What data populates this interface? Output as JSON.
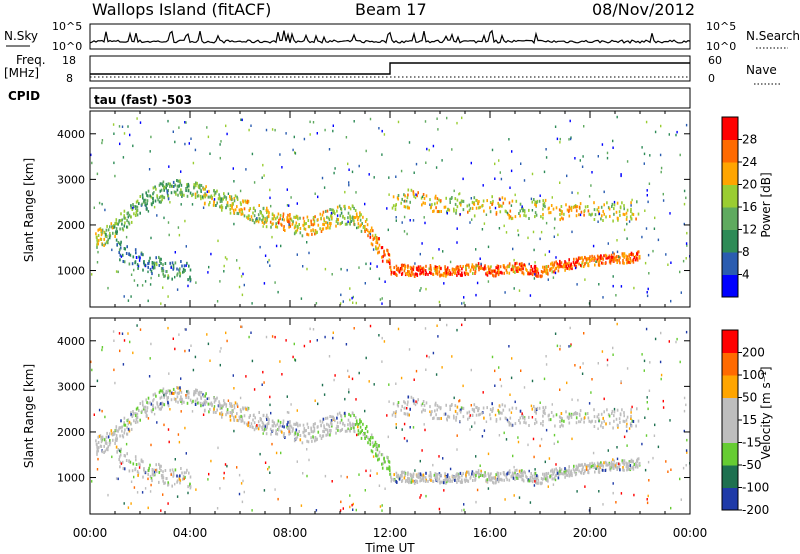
{
  "header": {
    "station": "Wallops Island (fitACF)",
    "beam": "Beam 17",
    "date": "08/Nov/2012"
  },
  "top_panels": {
    "nsky_label": "N.Sky",
    "nsky_ticks": [
      "10^5",
      "10^0"
    ],
    "nsearch_label": "N.Search",
    "nsearch_ticks": [
      "10^5",
      "10^0"
    ],
    "freq_label": "Freq.",
    "freq_unit": "[MHz]",
    "freq_ticks": [
      "18",
      "8"
    ],
    "nave_label": "Nave",
    "nave_ticks": [
      "60",
      "0"
    ],
    "cpid_label": "CPID",
    "cpid_value": "tau (fast) -503"
  },
  "colors": {
    "power": [
      "#0000ff",
      "#2a5cb0",
      "#2e8b57",
      "#5faa5f",
      "#9acd32",
      "#ffa500",
      "#ff6a00",
      "#ff0000"
    ],
    "velocity": [
      "#1f3aa8",
      "#1e7050",
      "#66cc33",
      "#bebebe",
      "#bebebe",
      "#ffa500",
      "#ff6a00",
      "#ff0000"
    ]
  },
  "chart_data": [
    {
      "type": "heatmap",
      "name": "power",
      "ylabel": "Slant Range [km]",
      "yticks": [
        1000,
        2000,
        3000,
        4000
      ],
      "ylim": [
        200,
        4500
      ],
      "colorbar_label": "Power [dB]",
      "colorbar_ticks": [
        "28",
        "24",
        "20",
        "16",
        "12",
        "8",
        "4"
      ],
      "traces": [
        {
          "x": [
            0.2,
            0.6,
            1.0,
            1.5,
            2.0,
            2.5,
            3.0,
            3.5,
            4.0,
            4.5,
            5.0,
            5.5,
            6.0,
            6.5,
            7.0,
            7.5,
            8.0,
            8.5,
            9.0,
            9.5,
            10.0,
            10.5,
            11.0,
            11.5,
            12.0
          ],
          "y": [
            1700,
            1800,
            2000,
            2200,
            2500,
            2650,
            2800,
            2850,
            2800,
            2700,
            2600,
            2500,
            2450,
            2300,
            2200,
            2100,
            2050,
            2000,
            2050,
            2150,
            2250,
            2250,
            2000,
            1600,
            1150
          ],
          "v": [
            18,
            16,
            14,
            14,
            12,
            14,
            12,
            14,
            16,
            18,
            16,
            18,
            20,
            18,
            20,
            24,
            20,
            22,
            20,
            18,
            16,
            20,
            24,
            26,
            28
          ]
        },
        {
          "x": [
            12.0,
            12.5,
            13.0,
            13.5,
            14.0,
            14.5,
            15.0,
            15.5,
            16.0,
            16.5,
            17.0,
            17.5,
            18.0,
            18.5,
            19.0,
            19.5,
            20.0,
            20.5,
            21.0,
            21.5,
            22.0
          ],
          "y": [
            1000,
            1050,
            1000,
            1050,
            1020,
            1000,
            1050,
            1080,
            1000,
            1050,
            1100,
            1050,
            1000,
            1100,
            1150,
            1200,
            1250,
            1250,
            1300,
            1300,
            1350
          ],
          "v": [
            28,
            26,
            28,
            24,
            26,
            28,
            24,
            26,
            28,
            24,
            26,
            28,
            24,
            26,
            28,
            24,
            26,
            28,
            24,
            26,
            20
          ]
        },
        {
          "x": [
            12.0,
            13.0,
            14.0,
            15.0,
            16.0,
            17.0,
            18.0,
            19.0,
            20.0,
            21.0,
            22.0
          ],
          "y": [
            2500,
            2650,
            2450,
            2400,
            2500,
            2350,
            2400,
            2300,
            2350,
            2300,
            2350
          ],
          "v": [
            20,
            22,
            18,
            20,
            22,
            18,
            20,
            22,
            18,
            20,
            16
          ]
        },
        {
          "x": [
            1.0,
            1.8,
            2.5,
            3.2,
            4.0
          ],
          "y": [
            1500,
            1300,
            1150,
            1050,
            1000
          ],
          "v": [
            10,
            8,
            12,
            10,
            8
          ]
        }
      ]
    },
    {
      "type": "heatmap",
      "name": "velocity",
      "ylabel": "Slant Range [km]",
      "xlabel": "Time UT",
      "xticks": [
        "00:00",
        "04:00",
        "08:00",
        "12:00",
        "16:00",
        "20:00",
        "00:00"
      ],
      "yticks": [
        1000,
        2000,
        3000,
        4000
      ],
      "ylim": [
        200,
        4500
      ],
      "colorbar_label": "Velocity [m s⁻¹]",
      "colorbar_ticks": [
        "200",
        "100",
        "50",
        "15",
        "-15",
        "-50",
        "-100",
        "-200"
      ]
    }
  ]
}
